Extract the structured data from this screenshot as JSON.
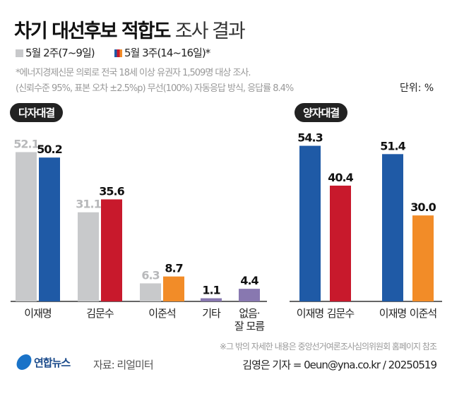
{
  "title": {
    "bold": "차기 대선후보 적합도",
    "light": "조사 결과"
  },
  "legend": [
    {
      "label": "5월 2주(7~9일)",
      "color": "#c8c9cb"
    },
    {
      "label": "5월 3주(14~16일)*",
      "colors": [
        "#1f5aa6",
        "#c8192c",
        "#f28c28"
      ]
    }
  ],
  "notes": [
    "*에너지경제신문 의뢰로 전국 18세 이상 유권자 1,509명 대상 조사.",
    "(신뢰수준 95%, 표본 오차 ±2.5%p) 무선(100%) 자동응답 방식, 응답률 8.4%"
  ],
  "unit": "단위: %",
  "footer": {
    "note": "※그 밖의 자세한 내용은 중앙선거여론조사심의위원회 홈페이지 참조",
    "logo": "연합뉴스",
    "source": "자료: 리얼미터",
    "credit": "김영은 기자 = 0eun@yna.co.kr / 20250519"
  },
  "chart_data": [
    {
      "type": "bar",
      "title": "다자대결",
      "categories": [
        "이재명",
        "김문수",
        "이준석",
        "기타",
        "없음·\n잘 모름"
      ],
      "series": [
        {
          "name": "5월 2주(7~9일)",
          "values": [
            52.1,
            31.1,
            6.3,
            null,
            null
          ],
          "color": "#c8c9cb"
        },
        {
          "name": "5월 3주(14~16일)*",
          "values": [
            50.2,
            35.6,
            8.7,
            1.1,
            4.4
          ],
          "colors": [
            "#1f5aa6",
            "#c8192c",
            "#f28c28",
            "#8878b0",
            "#8878b0"
          ]
        }
      ]
    },
    {
      "type": "bar",
      "title": "양자대결",
      "categories": [
        "이재명",
        "김문수",
        "이재명",
        "이준석"
      ],
      "values": [
        54.3,
        40.4,
        51.4,
        30.0
      ],
      "colors": [
        "#1f5aa6",
        "#c8192c",
        "#1f5aa6",
        "#f28c28"
      ]
    }
  ]
}
